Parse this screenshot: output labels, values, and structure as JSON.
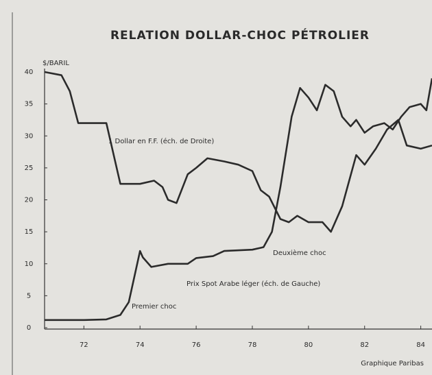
{
  "chart_data": {
    "type": "line",
    "title": "RELATION DOLLAR-CHOC PÉTROLIER",
    "ylabel": "$/BARIL",
    "source": "Graphique Paribas",
    "xlim": [
      70.6,
      84.4
    ],
    "xticks": [
      72,
      74,
      76,
      78,
      80,
      82,
      84
    ],
    "ylim": [
      0,
      40
    ],
    "yticks": [
      0,
      5,
      10,
      15,
      20,
      25,
      30,
      35,
      40
    ],
    "y2lim": [
      0,
      40
    ],
    "grid": false,
    "annotations": [
      "1 Dollar en F.F. (éch. de Droite)",
      "Deuxième choc",
      "Prix Spot Arabe léger (éch. de Gauche)",
      "Premier choc"
    ],
    "series": [
      {
        "name": "Prix Spot Arabe léger",
        "color": "#2b2b2b",
        "x": [
          70.6,
          72,
          72.8,
          73.3,
          73.6,
          73.9,
          74,
          74.1,
          74.4,
          75,
          75.7,
          76,
          76.6,
          77,
          78,
          78.4,
          78.7,
          79,
          79.4,
          79.7,
          80,
          80.3,
          80.6,
          80.9,
          81.2,
          81.5,
          81.7,
          82,
          82.3,
          82.7,
          83,
          83.3,
          83.6,
          84,
          84.2,
          84.4
        ],
        "values": [
          1.2,
          1.2,
          1.3,
          2,
          4,
          10,
          12,
          11,
          9.5,
          10,
          10,
          10.9,
          11.2,
          12,
          12.2,
          12.6,
          15,
          22,
          33,
          37.5,
          36,
          34,
          38,
          37,
          33,
          31.5,
          32.5,
          30.5,
          31.5,
          32,
          31,
          33,
          34.5,
          35,
          34,
          39
        ]
      },
      {
        "name": "1 Dollar en F.F.",
        "color": "#2b2b2b",
        "axis": "y2",
        "x": [
          70.6,
          71.2,
          71.5,
          71.8,
          72.8,
          73.3,
          74,
          74.5,
          74.8,
          75,
          75.3,
          75.7,
          76,
          76.4,
          77,
          77.5,
          78,
          78.3,
          78.6,
          79,
          79.3,
          79.6,
          80,
          80.5,
          80.8,
          81.2,
          81.7,
          82,
          82.4,
          82.8,
          83.2,
          83.5,
          84,
          84.4
        ],
        "values": [
          40,
          39.5,
          37,
          32,
          32,
          22.5,
          22.5,
          23,
          22,
          20,
          19.5,
          24,
          25,
          26.5,
          26,
          25.5,
          24.5,
          21.5,
          20.5,
          17,
          16.5,
          17.5,
          16.5,
          16.5,
          15,
          19,
          27,
          25.5,
          28,
          31,
          32.5,
          28.5,
          28,
          28.5
        ]
      }
    ]
  }
}
